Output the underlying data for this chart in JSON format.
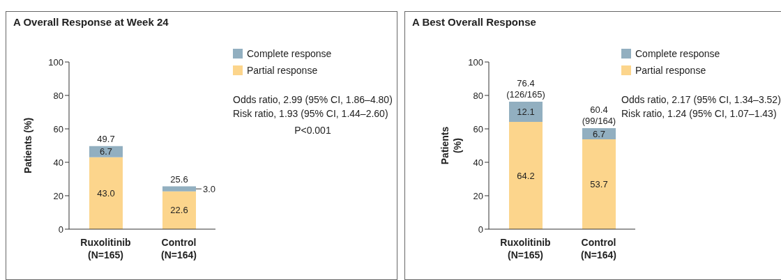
{
  "chart_data": [
    {
      "type": "bar",
      "title": "A Overall Response at Week 24",
      "ylabel": "Patients (%)",
      "categories": [
        "Ruxolitinib\n(N=165)",
        "Control\n(N=164)"
      ],
      "stacked": true,
      "ylim": [
        0,
        100
      ],
      "yticks": [
        0,
        20,
        40,
        60,
        80,
        100
      ],
      "grid": false,
      "legend": "top right",
      "series": [
        {
          "name": "Partial response",
          "color": "#fcd58c",
          "values": [
            43.0,
            22.6
          ],
          "value_labels": [
            "43.0",
            "22.6"
          ]
        },
        {
          "name": "Complete response",
          "color": "#92afc0",
          "values": [
            6.7,
            3.0
          ],
          "value_labels": [
            "6.7",
            "3.0"
          ]
        }
      ],
      "totals": [
        "49.7",
        "25.6"
      ],
      "annotations": [
        "Odds ratio, 2.99 (95% CI, 1.86–4.80)",
        "Risk ratio, 1.93 (95% CI, 1.44–2.60)",
        "P<0.001"
      ]
    },
    {
      "type": "bar",
      "title": "A Best Overall Response",
      "ylabel": "Patients (%)",
      "categories": [
        "Ruxolitinib\n(N=165)",
        "Control\n(N=164)"
      ],
      "stacked": true,
      "ylim": [
        0,
        100
      ],
      "yticks": [
        0,
        20,
        40,
        60,
        80,
        100
      ],
      "grid": false,
      "legend": "top right",
      "series": [
        {
          "name": "Partial response",
          "color": "#fcd58c",
          "values": [
            64.2,
            53.7
          ],
          "value_labels": [
            "64.2",
            "53.7"
          ]
        },
        {
          "name": "Complete response",
          "color": "#92afc0",
          "values": [
            12.1,
            6.7
          ],
          "value_labels": [
            "12.1",
            "6.7"
          ]
        }
      ],
      "totals": [
        "76.4\n(126/165)",
        "60.4\n(99/164)"
      ],
      "annotations": [
        "Odds ratio, 2.17 (95% CI, 1.34–3.52)",
        "Risk ratio, 1.24 (95% CI, 1.07–1.43)"
      ]
    }
  ]
}
